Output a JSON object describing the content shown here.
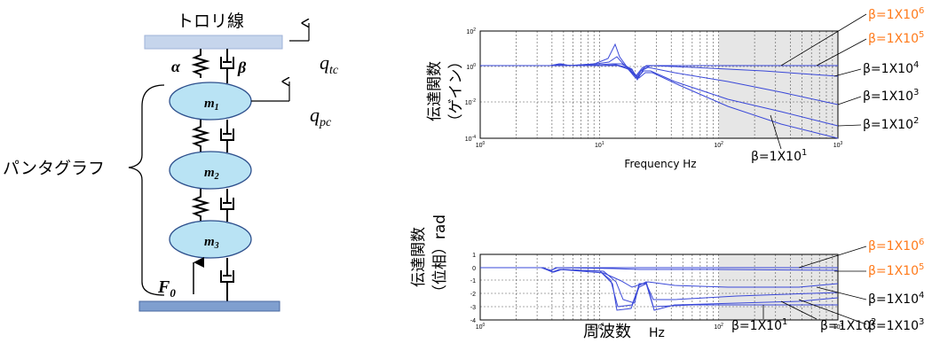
{
  "model": {
    "wire_label": "トロリ線",
    "q_tc": "q",
    "q_tc_sub": "tc",
    "q_pc": "q",
    "q_pc_sub": "pc",
    "alpha": "α",
    "beta": "β",
    "pantograph_label": "パンタグラフ",
    "mass1": "m",
    "mass1_sub": "1",
    "mass2": "m",
    "mass2_sub": "2",
    "mass3": "m",
    "mass3_sub": "3",
    "force": "F",
    "force_sub": "0"
  },
  "colors": {
    "mass_fill": "#b9e3f4",
    "rail_fill": "#7f9fcf",
    "wire_fill": "#c6d5ec",
    "curve": "#3a48d8",
    "highlight_label": "#ff7a1a",
    "shade": "#e6e6e6"
  },
  "gain_plot": {
    "y_label_main": "伝達関数",
    "y_label_sub": "（ゲイン）",
    "x_label": "Frequency Hz",
    "x_ticks": [
      "10",
      "10",
      "10",
      "10"
    ],
    "x_tick_exps": [
      "0",
      "1",
      "2",
      "3"
    ],
    "y_ticks": [
      "10",
      "10",
      "10",
      "10"
    ],
    "y_tick_exps": [
      "2",
      "0",
      "-2",
      "-4"
    ]
  },
  "phase_plot": {
    "y_label_main": "伝達関数",
    "y_label_sub": "（位相）rad",
    "x_label_main": "周波数",
    "x_label_unit": "Hz",
    "x_ticks": [
      "10",
      "10",
      "10",
      "10"
    ],
    "x_tick_exps": [
      "0",
      "1",
      "2",
      "3"
    ],
    "y_ticks": [
      "1",
      "0",
      "-1",
      "-2",
      "-3",
      "-4"
    ]
  },
  "gain_labels": [
    {
      "text": "β=1X10",
      "exp": "6",
      "highlight": true
    },
    {
      "text": "β=1X10",
      "exp": "5",
      "highlight": true
    },
    {
      "text": "β=1X10",
      "exp": "4",
      "highlight": false
    },
    {
      "text": "β=1X10",
      "exp": "3",
      "highlight": false
    },
    {
      "text": "β=1X10",
      "exp": "2",
      "highlight": false
    },
    {
      "text": "β=1X10",
      "exp": "1",
      "highlight": false
    }
  ],
  "phase_labels": [
    {
      "text": "β=1X10",
      "exp": "6",
      "highlight": true
    },
    {
      "text": "β=1X10",
      "exp": "5",
      "highlight": true
    },
    {
      "text": "β=1X10",
      "exp": "4",
      "highlight": false
    },
    {
      "text": "β=1X10",
      "exp": "3",
      "highlight": false
    },
    {
      "text": "β=1X10",
      "exp": "1",
      "highlight": false
    },
    {
      "text": "β=1X10",
      "exp": "2",
      "highlight": false
    }
  ]
}
